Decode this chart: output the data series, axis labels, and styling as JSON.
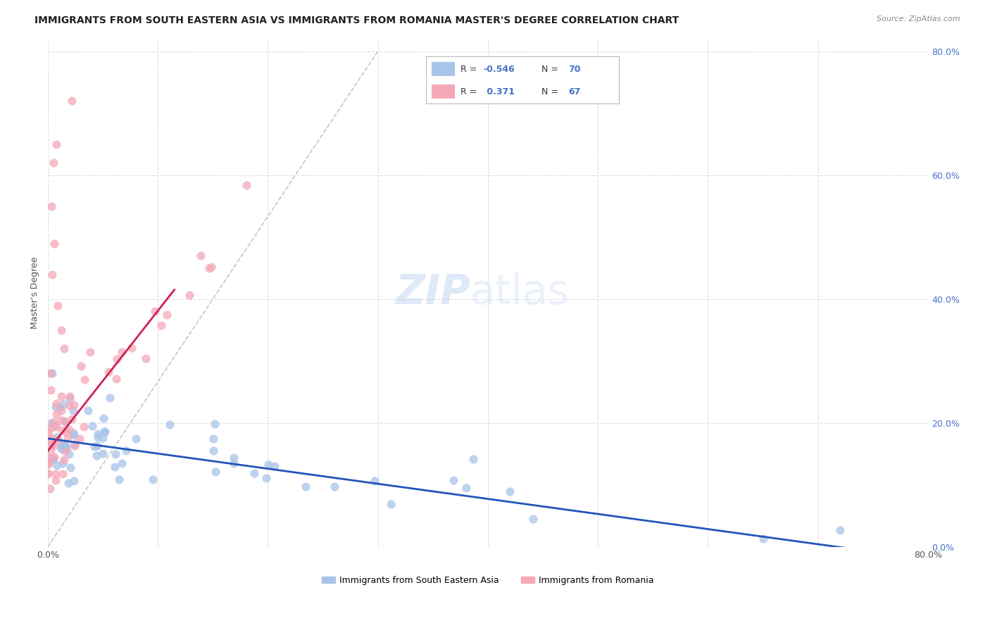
{
  "title": "IMMIGRANTS FROM SOUTH EASTERN ASIA VS IMMIGRANTS FROM ROMANIA MASTER'S DEGREE CORRELATION CHART",
  "source": "Source: ZipAtlas.com",
  "ylabel": "Master's Degree",
  "legend_label1": "Immigrants from South Eastern Asia",
  "legend_label2": "Immigrants from Romania",
  "r1": "-0.546",
  "n1": "70",
  "r2": "0.371",
  "n2": "67",
  "color_blue": "#A8C4E8",
  "color_pink": "#F4A8B8",
  "color_blue_line": "#2255BB",
  "color_pink_line": "#CC2255",
  "color_diag": "#BBBBBB",
  "watermark_zip": "ZIP",
  "watermark_atlas": "atlas",
  "xlim": [
    0.0,
    0.8
  ],
  "ylim": [
    0.0,
    0.82
  ],
  "x_ticks": [
    0.0,
    0.1,
    0.2,
    0.3,
    0.4,
    0.5,
    0.6,
    0.7,
    0.8
  ],
  "y_ticks": [
    0.0,
    0.2,
    0.4,
    0.6,
    0.8
  ],
  "x_tick_labels": [
    "0.0%",
    "",
    "",
    "",
    "",
    "",
    "",
    "",
    "80.0%"
  ],
  "y_tick_labels_right": [
    "0.0%",
    "20.0%",
    "40.0%",
    "60.0%",
    "80.0%"
  ],
  "blue_line_x": [
    0.0,
    0.8
  ],
  "blue_line_y": [
    0.175,
    -0.02
  ],
  "pink_line_x": [
    0.0,
    0.115
  ],
  "pink_line_y": [
    0.155,
    0.415
  ],
  "diag_line_x": [
    0.0,
    0.3
  ],
  "diag_line_y": [
    0.0,
    0.8
  ],
  "background_color": "#FFFFFF",
  "grid_color": "#DDDDDD",
  "title_fontsize": 10,
  "axis_fontsize": 9,
  "watermark_fontsize_zip": 40,
  "watermark_fontsize_atlas": 40
}
